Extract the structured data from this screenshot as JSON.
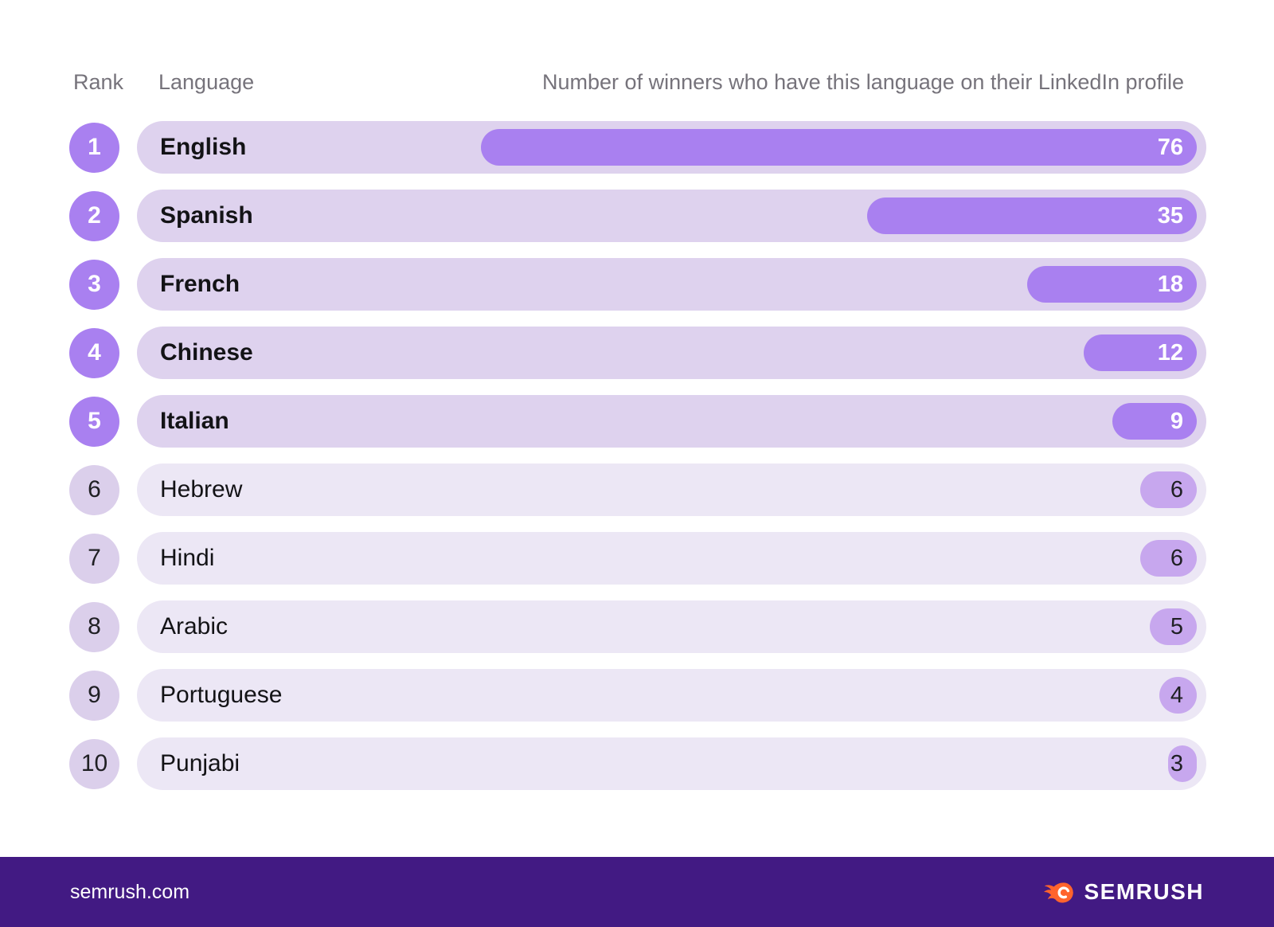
{
  "header": {
    "rank_label": "Rank",
    "language_label": "Language",
    "value_label": "Number of winners who have this language on their LinkedIn profile"
  },
  "chart_data": {
    "type": "bar",
    "orientation": "horizontal",
    "title": "Number of winners who have this language on their LinkedIn profile",
    "categories": [
      "English",
      "Spanish",
      "French",
      "Chinese",
      "Italian",
      "Hebrew",
      "Hindi",
      "Arabic",
      "Portuguese",
      "Punjabi"
    ],
    "values": [
      76,
      35,
      18,
      12,
      9,
      6,
      6,
      5,
      4,
      3
    ],
    "ranks": [
      1,
      2,
      3,
      4,
      5,
      6,
      7,
      8,
      9,
      10
    ],
    "xlim": [
      0,
      76
    ],
    "highlight_top": 5,
    "value_labels_shown": true,
    "colors": {
      "bar_top5": "#a980f0",
      "bar_rest": "#c7a7ee",
      "track_top5": "#ded2ee",
      "track_rest": "#ece7f5",
      "rank_badge_top5": "#a980f0",
      "rank_badge_rest": "#dbcfeb",
      "value_text_top5": "#ffffff",
      "value_text_rest": "#202024",
      "header_text": "#76737b",
      "label_text": "#131316"
    }
  },
  "footer": {
    "site": "semrush.com",
    "brand": "SEMRUSH",
    "logo_icon": "semrush-flame-icon",
    "background": "#421a83",
    "flame_color": "#ff642d"
  }
}
